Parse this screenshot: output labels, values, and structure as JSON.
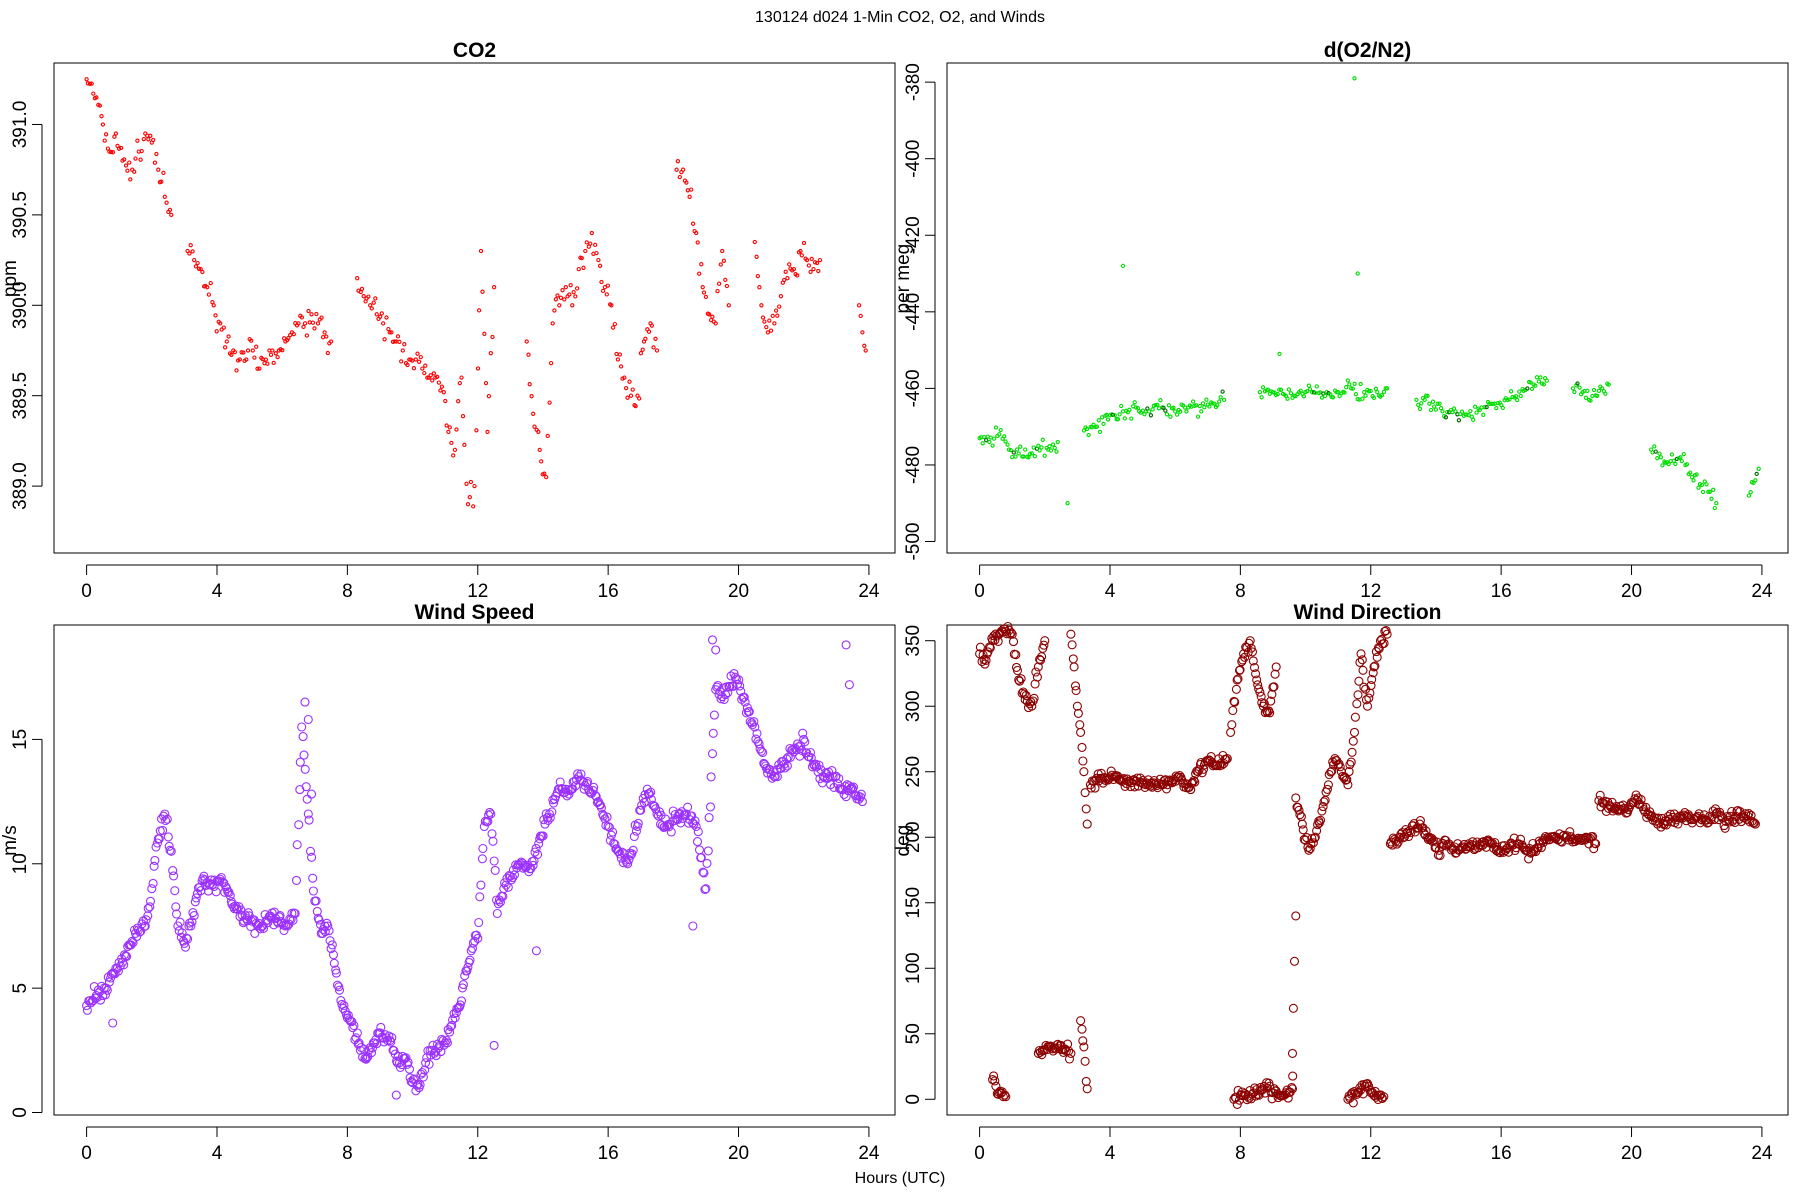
{
  "figure": {
    "suptitle": "130124   d024   1-Min CO2, O2, and Winds",
    "xlabel": "Hours (UTC)"
  },
  "colors": {
    "co2": "#ff0000",
    "o2": "#00dd00",
    "o2_dark": "#006600",
    "speed": "#9b30ff",
    "direction": "#8b0000",
    "axis": "#000000"
  },
  "chart_data": [
    {
      "type": "scatter",
      "title": "CO2",
      "ylabel": "ppm",
      "xlabel": "",
      "xlim": [
        -1,
        24.8
      ],
      "ylim": [
        388.63,
        391.34
      ],
      "xticks": [
        0,
        4,
        8,
        12,
        16,
        20,
        24
      ],
      "yticks": [
        389.0,
        389.5,
        390.0,
        390.5,
        391.0
      ],
      "yticklabels": [
        "389.0",
        "389.5",
        "390.0",
        "390.5",
        "391.0"
      ],
      "color": "#ff0000",
      "marker_radius": 1.6,
      "note": "1-minute CO2; gap between ~7.6 and 8.2 h",
      "series": [
        {
          "x": [
            0.0,
            0.3,
            0.5,
            0.7,
            0.9,
            1.1,
            1.4,
            1.6,
            1.8,
            2.0,
            2.2,
            2.4,
            2.6
          ],
          "y": [
            391.25,
            391.15,
            391.0,
            390.85,
            390.95,
            390.8,
            390.75,
            390.85,
            390.95,
            390.9,
            390.75,
            390.6,
            390.5
          ]
        },
        {
          "x": [
            3.1,
            3.3,
            3.5,
            3.7,
            3.9,
            4.1,
            4.3,
            4.5,
            4.7,
            4.9,
            5.1,
            5.3,
            5.5,
            5.7,
            5.9,
            6.1,
            6.3,
            6.5,
            6.7,
            6.9,
            7.1,
            7.3,
            7.5
          ],
          "y": [
            390.3,
            390.25,
            390.2,
            390.1,
            390.0,
            389.9,
            389.8,
            389.75,
            389.7,
            389.7,
            389.75,
            389.65,
            389.7,
            389.75,
            389.75,
            389.8,
            389.85,
            389.9,
            389.9,
            389.95,
            389.9,
            389.85,
            389.8
          ]
        },
        {
          "x": [
            8.3,
            8.5,
            8.7,
            8.9,
            9.1,
            9.3,
            9.5,
            9.7,
            9.9,
            10.1,
            10.3,
            10.5,
            10.7,
            10.9,
            11.1,
            11.3,
            11.5,
            11.7,
            11.9,
            12.1,
            12.3,
            12.5
          ],
          "y": [
            390.15,
            390.05,
            390.0,
            389.95,
            389.9,
            389.85,
            389.8,
            389.75,
            389.7,
            389.7,
            389.65,
            389.6,
            389.6,
            389.55,
            389.3,
            389.2,
            389.6,
            388.9,
            389.0,
            390.3,
            389.3,
            390.1
          ]
        },
        {
          "x": [
            13.5,
            13.7,
            13.9,
            14.1,
            14.3,
            14.5,
            14.7,
            14.9,
            15.1,
            15.3,
            15.5,
            15.7,
            15.9,
            16.1,
            16.3,
            16.5,
            16.7,
            16.9,
            17.1,
            17.3,
            17.5
          ],
          "y": [
            389.8,
            389.4,
            389.2,
            389.05,
            389.9,
            390.0,
            390.1,
            390.0,
            390.2,
            390.3,
            390.4,
            390.25,
            390.1,
            390.0,
            389.7,
            389.6,
            389.5,
            389.5,
            389.8,
            389.9,
            389.75
          ]
        },
        {
          "x": [
            18.1,
            18.3,
            18.5,
            18.7,
            18.9,
            19.1,
            19.3,
            19.5,
            19.7
          ],
          "y": [
            390.75,
            390.75,
            390.6,
            390.4,
            390.1,
            389.95,
            389.9,
            390.3,
            390.0
          ]
        },
        {
          "x": [
            20.5,
            20.7,
            20.9,
            21.1,
            21.3,
            21.5,
            21.7,
            21.9,
            22.1,
            22.3,
            22.5
          ],
          "y": [
            390.35,
            390.0,
            389.85,
            389.9,
            390.05,
            390.15,
            390.2,
            390.3,
            390.25,
            390.2,
            390.25
          ]
        },
        {
          "x": [
            23.7,
            23.8,
            23.9
          ],
          "y": [
            390.0,
            389.85,
            389.75
          ]
        }
      ]
    },
    {
      "type": "scatter",
      "title": "d(O2/N2)",
      "ylabel": "per meg",
      "xlabel": "",
      "xlim": [
        -1,
        24.8
      ],
      "ylim": [
        -503,
        -375
      ],
      "xticks": [
        0,
        4,
        8,
        12,
        16,
        20,
        24
      ],
      "yticks": [
        -500,
        -480,
        -460,
        -440,
        -420,
        -400,
        -380
      ],
      "yticklabels": [
        "-500",
        "-480",
        "-460",
        "-440",
        "-420",
        "-400",
        "-380"
      ],
      "color": "#00dd00",
      "marker_radius": 1.6,
      "series": [
        {
          "x": [
            0.0,
            0.3,
            0.6,
            0.9,
            1.2,
            1.5,
            1.8,
            2.1,
            2.4
          ],
          "y": [
            -473,
            -474,
            -472,
            -476,
            -477,
            -478,
            -475,
            -476,
            -474
          ]
        },
        {
          "x": [
            3.2,
            3.6,
            4.0,
            4.4,
            4.8,
            5.2,
            5.6,
            6.0,
            6.4,
            6.8,
            7.2,
            7.5
          ],
          "y": [
            -471,
            -470,
            -467,
            -466,
            -465,
            -466,
            -465,
            -466,
            -465,
            -466,
            -464,
            -463
          ]
        },
        {
          "x": [
            8.6,
            9.0,
            9.4,
            9.8,
            10.2,
            10.6,
            11.0,
            11.4,
            11.8,
            12.2,
            12.5
          ],
          "y": [
            -461,
            -461,
            -462,
            -461,
            -461,
            -462,
            -461,
            -460,
            -461,
            -461,
            -460
          ]
        },
        {
          "x": [
            13.4,
            13.8,
            14.2,
            14.6,
            15.0,
            15.4,
            15.8,
            16.2,
            16.6,
            17.0,
            17.4
          ],
          "y": [
            -463,
            -464,
            -466,
            -466,
            -467,
            -465,
            -464,
            -463,
            -462,
            -459,
            -458
          ]
        },
        {
          "x": [
            18.2,
            18.5,
            18.8,
            19.1,
            19.3
          ],
          "y": [
            -460,
            -461,
            -462,
            -460,
            -459
          ]
        },
        {
          "x": [
            20.6,
            20.9,
            21.2,
            21.5,
            21.8,
            22.1,
            22.4,
            22.6
          ],
          "y": [
            -476,
            -478,
            -479,
            -478,
            -482,
            -485,
            -487,
            -490
          ]
        },
        {
          "x": [
            23.6,
            23.8,
            23.9
          ],
          "y": [
            -488,
            -484,
            -481
          ]
        },
        {
          "x": [
            4.4,
            11.5,
            11.6,
            2.7,
            9.2
          ],
          "y": [
            -428,
            -379,
            -430,
            -490,
            -451
          ]
        }
      ]
    },
    {
      "type": "scatter",
      "title": "Wind Speed",
      "ylabel": "m/s",
      "xlabel": "",
      "xlim": [
        -1,
        24.8
      ],
      "ylim": [
        -0.1,
        19.6
      ],
      "xticks": [
        0,
        4,
        8,
        12,
        16,
        20,
        24
      ],
      "yticks": [
        0,
        5,
        10,
        15
      ],
      "yticklabels": [
        "0",
        "5",
        "10",
        "15"
      ],
      "color": "#9b30ff",
      "marker_radius": 4,
      "series": [
        {
          "x": [
            0.0,
            0.3,
            0.6,
            0.9,
            1.2,
            1.5,
            1.8,
            2.0,
            2.2,
            2.4,
            2.6,
            2.8,
            3.0,
            3.2,
            3.4,
            3.6,
            3.8,
            4.0,
            4.3,
            4.6,
            4.9,
            5.2,
            5.5,
            5.8,
            6.1,
            6.4,
            6.6,
            6.8,
            7.0,
            7.2,
            7.4,
            7.6,
            7.8,
            8.0,
            8.2,
            8.4,
            8.6,
            8.8,
            9.0,
            9.2,
            9.4,
            9.6,
            9.8,
            10.0,
            10.2,
            10.4,
            10.6,
            10.8,
            11.0,
            11.2,
            11.4,
            11.6,
            11.8,
            12.0,
            12.2,
            12.4,
            12.6,
            12.8,
            13.0,
            13.3,
            13.6,
            13.9,
            14.2,
            14.5,
            14.8,
            15.1,
            15.4,
            15.7,
            16.0,
            16.3,
            16.6,
            16.9,
            17.2,
            17.5,
            17.8,
            18.1,
            18.4,
            18.7,
            19.0,
            19.3,
            19.6,
            19.9,
            20.2,
            20.5,
            20.8,
            21.1,
            21.4,
            21.7,
            22.0,
            22.3,
            22.6,
            22.9,
            23.2,
            23.5,
            23.8
          ],
          "y": [
            4.3,
            4.7,
            5.0,
            5.8,
            6.3,
            7.2,
            7.5,
            9.0,
            11.0,
            12.0,
            10.5,
            7.5,
            6.8,
            7.5,
            8.8,
            9.5,
            9.2,
            9.3,
            9.0,
            8.2,
            7.8,
            7.6,
            7.7,
            7.8,
            7.5,
            8.0,
            15.5,
            12.0,
            8.5,
            7.2,
            7.5,
            6.0,
            4.5,
            3.8,
            3.5,
            2.5,
            2.2,
            2.8,
            3.2,
            3.0,
            2.5,
            2.0,
            2.2,
            1.2,
            1.0,
            2.0,
            2.5,
            2.6,
            2.8,
            3.5,
            4.2,
            5.5,
            6.5,
            7.0,
            11.5,
            12.0,
            8.0,
            9.0,
            9.5,
            10.0,
            9.8,
            11.0,
            12.0,
            13.0,
            12.8,
            13.5,
            13.0,
            12.5,
            11.5,
            10.5,
            10.0,
            11.5,
            13.0,
            12.0,
            11.5,
            11.8,
            12.0,
            11.5,
            9.0,
            17.0,
            16.8,
            17.5,
            16.5,
            15.5,
            14.0,
            13.5,
            14.0,
            14.5,
            15.0,
            14.0,
            13.5,
            13.5,
            13.0,
            13.0,
            12.5
          ]
        },
        {
          "x": [
            6.7,
            6.8,
            6.9,
            12.5,
            13.8,
            23.3,
            23.4,
            19.2,
            19.3,
            18.6,
            0.8,
            9.5
          ],
          "y": [
            16.5,
            15.8,
            12.8,
            2.7,
            6.5,
            18.8,
            17.2,
            19.0,
            18.6,
            7.5,
            3.6,
            0.7
          ]
        }
      ]
    },
    {
      "type": "scatter",
      "title": "Wind Direction",
      "ylabel": "deg",
      "xlabel": "",
      "xlim": [
        -1,
        24.8
      ],
      "ylim": [
        -12,
        362
      ],
      "xticks": [
        0,
        4,
        8,
        12,
        16,
        20,
        24
      ],
      "yticks": [
        0,
        50,
        100,
        150,
        200,
        250,
        300,
        350
      ],
      "yticklabels": [
        "0",
        "50",
        "100",
        "150",
        "200",
        "250",
        "300",
        "350"
      ],
      "color": "#8b0000",
      "marker_radius": 4,
      "series": [
        {
          "x": [
            0.0,
            0.2,
            0.4,
            0.6,
            0.8,
            1.0,
            1.2,
            1.4,
            1.6,
            1.8,
            2.0
          ],
          "y": [
            340,
            335,
            350,
            355,
            357,
            355,
            320,
            305,
            300,
            330,
            350
          ]
        },
        {
          "x": [
            0.4,
            0.5,
            0.6,
            0.8
          ],
          "y": [
            15,
            10,
            5,
            2
          ]
        },
        {
          "x": [
            1.8,
            2.0,
            2.2,
            2.4,
            2.6,
            2.8
          ],
          "y": [
            35,
            38,
            40,
            42,
            38,
            35
          ]
        },
        {
          "x": [
            2.8,
            2.9,
            3.0,
            3.1,
            3.2,
            3.3
          ],
          "y": [
            355,
            330,
            300,
            280,
            250,
            210
          ]
        },
        {
          "x": [
            3.1,
            3.2,
            3.3
          ],
          "y": [
            60,
            40,
            8
          ]
        },
        {
          "x": [
            3.4,
            3.7,
            4.0,
            4.3,
            4.6,
            4.9,
            5.2,
            5.5,
            5.8,
            6.1,
            6.4,
            6.7,
            7.0,
            7.3,
            7.6
          ],
          "y": [
            240,
            245,
            246,
            244,
            243,
            242,
            240,
            241,
            243,
            246,
            238,
            250,
            258,
            255,
            260
          ]
        },
        {
          "x": [
            7.7,
            7.9,
            8.1,
            8.3,
            8.5,
            8.7,
            8.9,
            9.1
          ],
          "y": [
            280,
            320,
            340,
            350,
            320,
            300,
            295,
            330
          ]
        },
        {
          "x": [
            7.8,
            8.9,
            9.0,
            9.2,
            9.4,
            9.6,
            9.6,
            9.7
          ],
          "y": [
            0,
            10,
            5,
            3,
            5,
            8,
            35,
            140
          ]
        },
        {
          "x": [
            9.7,
            9.9,
            10.1,
            10.3,
            10.5,
            10.7,
            10.9,
            11.1,
            11.3,
            11.5,
            11.7,
            11.9,
            12.1,
            12.3,
            12.5
          ],
          "y": [
            230,
            210,
            190,
            200,
            220,
            240,
            260,
            250,
            240,
            280,
            340,
            300,
            330,
            350,
            355
          ]
        },
        {
          "x": [
            11.3,
            11.9,
            12.0,
            12.2,
            12.4
          ],
          "y": [
            0,
            12,
            5,
            3,
            2
          ]
        },
        {
          "x": [
            12.6,
            12.9,
            13.2,
            13.5,
            13.8,
            14.1,
            14.4,
            14.7,
            15.0,
            15.3,
            15.6,
            15.9,
            16.2,
            16.5,
            16.8,
            17.1,
            17.4,
            17.7,
            18.0,
            18.3,
            18.6,
            18.9
          ],
          "y": [
            195,
            200,
            205,
            210,
            200,
            190,
            195,
            190,
            195,
            192,
            198,
            190,
            192,
            195,
            190,
            192,
            198,
            200,
            200,
            198,
            200,
            195
          ]
        },
        {
          "x": [
            19.0,
            19.3,
            19.6,
            19.9,
            20.2,
            20.5,
            20.8,
            21.1,
            21.4,
            21.7,
            22.0,
            22.3,
            22.6,
            22.9,
            23.2,
            23.5,
            23.8
          ],
          "y": [
            228,
            222,
            220,
            221,
            230,
            218,
            210,
            212,
            215,
            216,
            215,
            213,
            218,
            212,
            216,
            218,
            210
          ]
        }
      ]
    }
  ]
}
